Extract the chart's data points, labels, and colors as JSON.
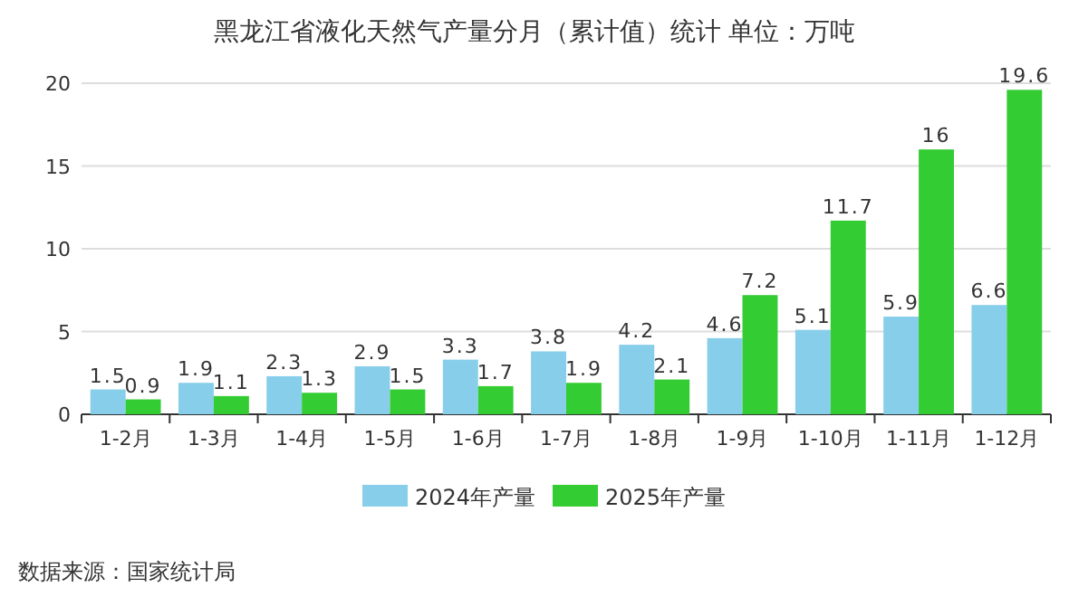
{
  "chart_data": {
    "type": "bar",
    "title": "黑龙江省液化天然气产量分月（累计值）统计 单位：万吨",
    "categories": [
      "1-2月",
      "1-3月",
      "1-4月",
      "1-5月",
      "1-6月",
      "1-7月",
      "1-8月",
      "1-9月",
      "1-10月",
      "1-11月",
      "1-12月"
    ],
    "series": [
      {
        "name": "2024年产量",
        "color": "#87ceeb",
        "values": [
          1.5,
          1.9,
          2.3,
          2.9,
          3.3,
          3.8,
          4.2,
          4.6,
          5.1,
          5.9,
          6.6
        ]
      },
      {
        "name": "2025年产量",
        "color": "#33cc33",
        "values": [
          0.9,
          1.1,
          1.3,
          1.5,
          1.7,
          1.9,
          2.1,
          7.2,
          11.7,
          16,
          19.6
        ]
      }
    ],
    "ylim": [
      0,
      20
    ],
    "yticks": [
      0,
      5,
      10,
      15,
      20
    ],
    "grid": "y",
    "legend": "bottom",
    "data_labels": true,
    "annotations": [
      "数据来源：国家统计局"
    ]
  }
}
